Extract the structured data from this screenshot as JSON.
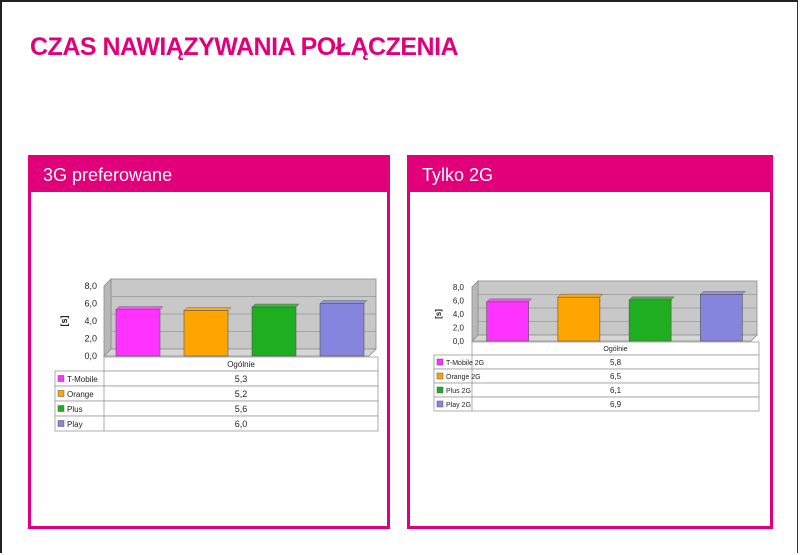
{
  "slide": {
    "title": "CZAS NAWIĄZYWANIA POŁĄCZENIA",
    "accent_color": "#e2007a"
  },
  "panels": [
    {
      "header": "3G preferowane"
    },
    {
      "header": "Tylko 2G"
    }
  ],
  "chart_data": [
    {
      "type": "bar",
      "title": "",
      "xlabel": "",
      "ylabel": "[s]",
      "categories": [
        "Ogólnie"
      ],
      "ylim": [
        0,
        8
      ],
      "yticks": [
        "8,0",
        "6,0",
        "4,0",
        "2,0",
        "0,0"
      ],
      "grid": true,
      "legend": "table",
      "series": [
        {
          "name": "T-Mobile",
          "values": [
            5.3
          ],
          "label": "5,3",
          "color": "#ff33ff"
        },
        {
          "name": "Orange",
          "values": [
            5.2
          ],
          "label": "5,2",
          "color": "#ffa500"
        },
        {
          "name": "Plus",
          "values": [
            5.6
          ],
          "label": "5,6",
          "color": "#1fae1f"
        },
        {
          "name": "Play",
          "values": [
            6.0
          ],
          "label": "6,0",
          "color": "#8585dd"
        }
      ]
    },
    {
      "type": "bar",
      "title": "",
      "xlabel": "",
      "ylabel": "[s]",
      "categories": [
        "Ogólnie"
      ],
      "ylim": [
        0,
        8
      ],
      "yticks": [
        "8,0",
        "6,0",
        "4,0",
        "2,0",
        "0,0"
      ],
      "grid": true,
      "legend": "table",
      "series": [
        {
          "name": "T-Mobile 2G",
          "values": [
            5.8
          ],
          "label": "5,8",
          "color": "#ff33ff"
        },
        {
          "name": "Orange 2G",
          "values": [
            6.5
          ],
          "label": "6,5",
          "color": "#ffa500"
        },
        {
          "name": "Plus 2G",
          "values": [
            6.1
          ],
          "label": "6,1",
          "color": "#1fae1f"
        },
        {
          "name": "Play 2G",
          "values": [
            6.9
          ],
          "label": "6,9",
          "color": "#8585dd"
        }
      ]
    }
  ]
}
